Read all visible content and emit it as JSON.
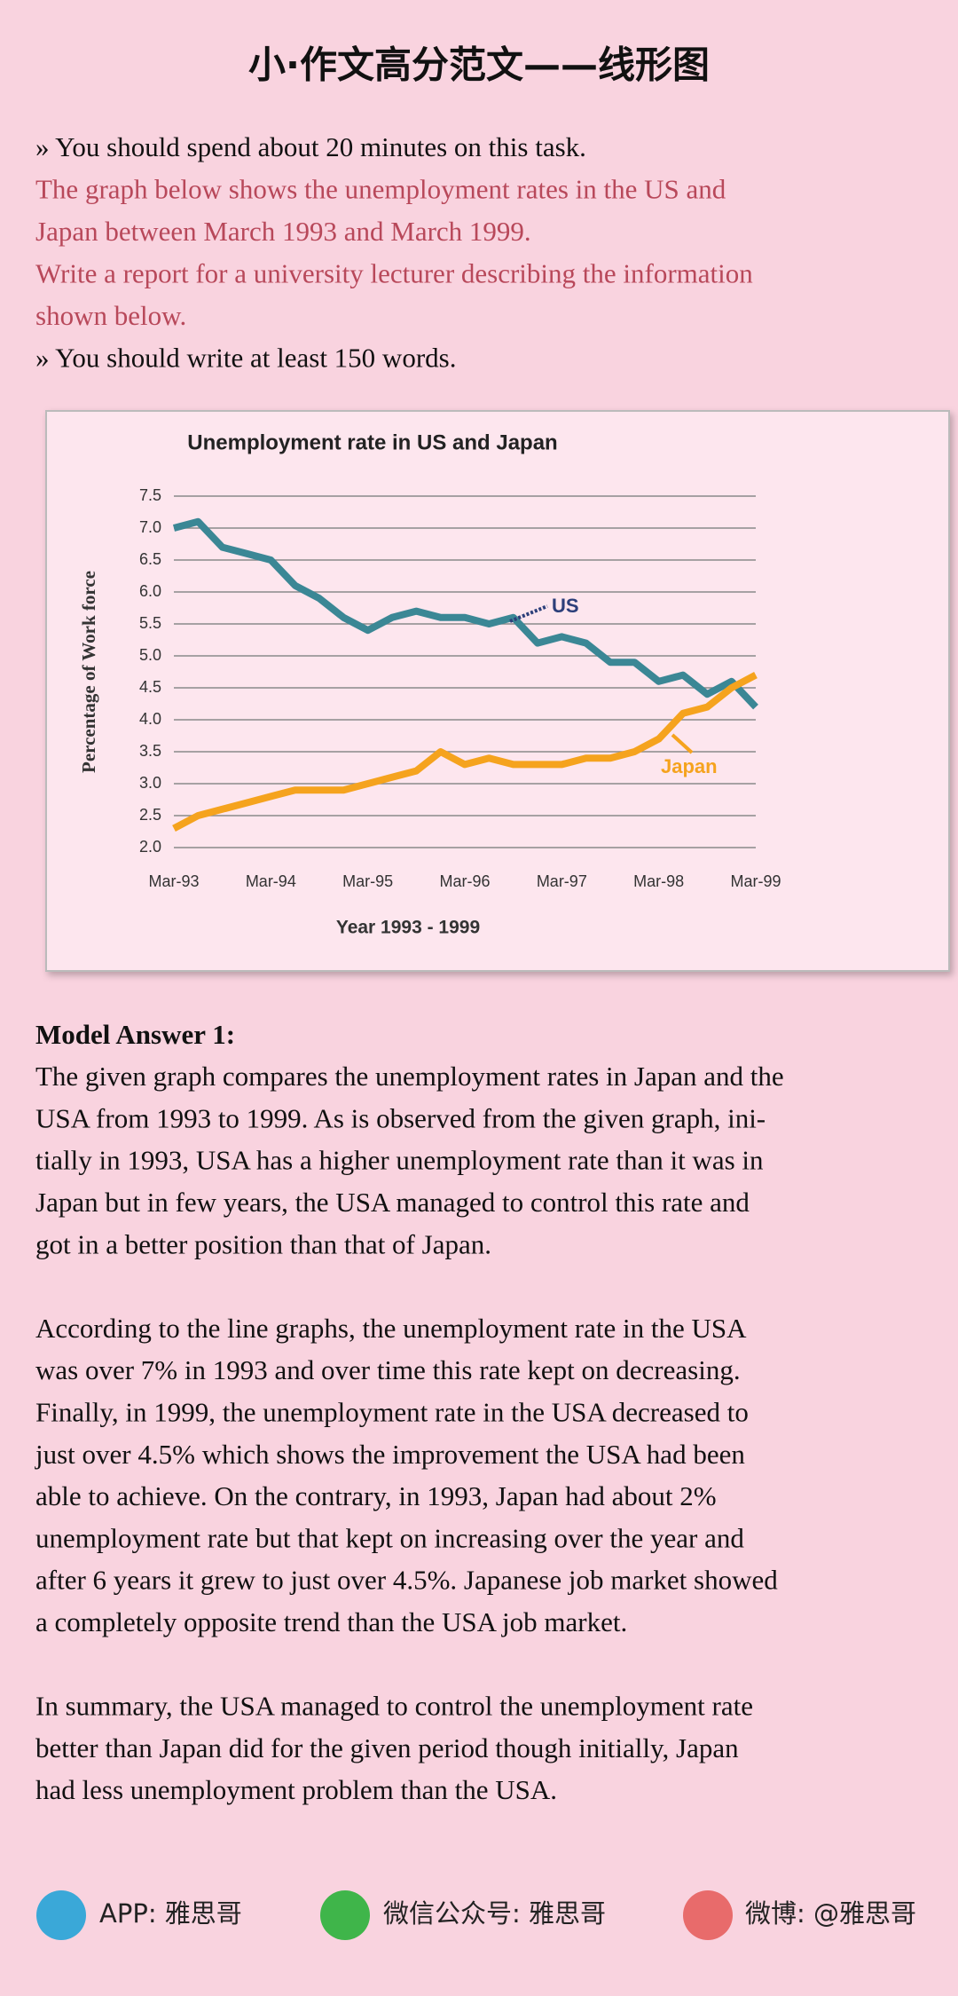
{
  "header": {
    "title": "小·作文高分范文——线形图"
  },
  "instructions": [
    "» You should spend about 20 minutes on this task.",
    "The graph below shows the unemployment rates in the US and",
    "Japan between March 1993 and March 1999.",
    "Write a report for a university lecturer describing the information",
    "shown below.",
    "» You should write at least 150 words."
  ],
  "chart_data": {
    "type": "line",
    "title": "Unemployment rate in US and Japan",
    "x_label": "Year 1993 - 1999",
    "y_label": "Percentage of Work force",
    "categories": [
      "Mar-93",
      null,
      null,
      null,
      "Mar-94",
      null,
      null,
      null,
      "Mar-95",
      null,
      null,
      null,
      "Mar-96",
      null,
      null,
      null,
      "Mar-97",
      null,
      null,
      null,
      "Mar-98",
      null,
      null,
      null,
      "Mar-99"
    ],
    "series": [
      {
        "name": "US",
        "color": "#3b8795",
        "values": [
          7.0,
          7.1,
          6.7,
          6.6,
          6.5,
          6.1,
          5.9,
          5.6,
          5.4,
          5.6,
          5.7,
          5.6,
          5.6,
          5.5,
          5.6,
          5.2,
          5.3,
          5.2,
          4.9,
          4.9,
          4.6,
          4.7,
          4.4,
          4.6,
          4.2
        ]
      },
      {
        "name": "Japan",
        "color": "#f5a31e",
        "values": [
          2.3,
          2.5,
          2.6,
          2.7,
          2.8,
          2.9,
          2.9,
          2.9,
          3.0,
          3.1,
          3.2,
          3.5,
          3.3,
          3.4,
          3.3,
          3.3,
          3.3,
          3.4,
          3.4,
          3.5,
          3.7,
          4.1,
          4.2,
          4.5,
          4.7
        ]
      }
    ],
    "ylim": [
      2.0,
      7.5
    ],
    "yticks": [
      {
        "value": 2,
        "label": "2.0"
      },
      2.5,
      {
        "value": 3,
        "label": "3.0"
      },
      3.5,
      {
        "value": 4,
        "label": "4.0"
      },
      4.5,
      {
        "value": 5,
        "label": "5.0"
      },
      5.5,
      {
        "value": 6,
        "label": "6.0"
      },
      6.5,
      {
        "value": 7,
        "label": "7.0"
      },
      7.5
    ],
    "grid": true
  },
  "answer": {
    "heading": "Model Answer 1:",
    "paragraphs": [
      [
        "The given graph compares the unemployment rates in Japan and the",
        "USA from 1993 to 1999. As is observed from the given graph, ini-",
        "tially in 1993, USA has a higher unemployment rate than it was in",
        "Japan but in few years, the USA managed to control this rate and",
        "got in a better position than that of Japan."
      ],
      [
        "According to the line graphs, the unemployment rate in the USA",
        "was over 7% in 1993 and over time this rate kept on decreasing.",
        "Finally, in 1999, the unemployment rate in the USA decreased to",
        "just over 4.5% which shows the improvement the USA had been",
        "able to achieve. On the contrary, in 1993, Japan had about 2%",
        "unemployment rate but that kept on increasing over the year and",
        "after 6 years it grew to just over 4.5%. Japanese job market showed",
        "a completely opposite trend than the USA job market."
      ],
      [
        "In summary, the USA managed to control the unemployment rate",
        "better than Japan did for the given period though initially, Japan",
        "had less unemployment problem than the USA."
      ]
    ]
  },
  "footer": [
    "APP: 雅思哥",
    "微信公众号: 雅思哥",
    "微博: @雅思哥"
  ]
}
